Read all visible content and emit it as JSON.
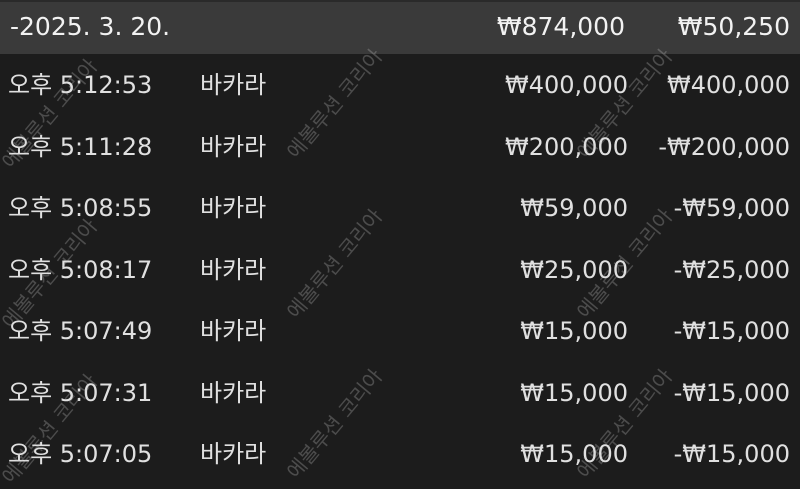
{
  "summary": {
    "date": "-2025. 3. 20.",
    "total_bet": "₩874,000",
    "total_result": "₩50,250"
  },
  "rows": [
    {
      "time": "오후 5:12:53",
      "game": "바카라",
      "bet": "₩400,000",
      "result": "₩400,000"
    },
    {
      "time": "오후 5:11:28",
      "game": "바카라",
      "bet": "₩200,000",
      "result": "-₩200,000"
    },
    {
      "time": "오후 5:08:55",
      "game": "바카라",
      "bet": "₩59,000",
      "result": "-₩59,000"
    },
    {
      "time": "오후 5:08:17",
      "game": "바카라",
      "bet": "₩25,000",
      "result": "-₩25,000"
    },
    {
      "time": "오후 5:07:49",
      "game": "바카라",
      "bet": "₩15,000",
      "result": "-₩15,000"
    },
    {
      "time": "오후 5:07:31",
      "game": "바카라",
      "bet": "₩15,000",
      "result": "-₩15,000"
    },
    {
      "time": "오후 5:07:05",
      "game": "바카라",
      "bet": "₩15,000",
      "result": "-₩15,000"
    }
  ],
  "watermark": "에볼루션 코리아"
}
